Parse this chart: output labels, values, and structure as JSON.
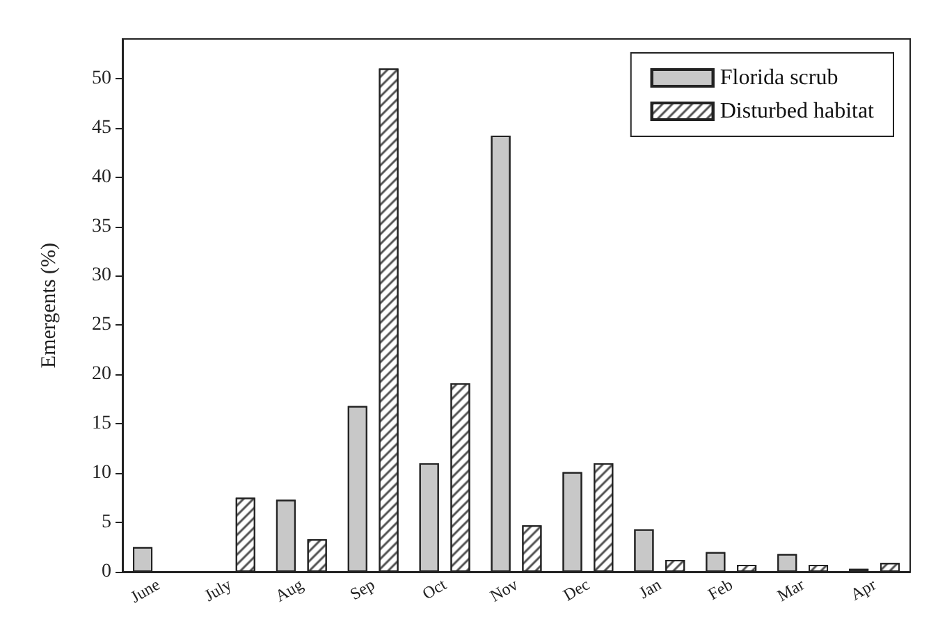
{
  "chart_data": {
    "type": "bar",
    "ylabel": "Emergents (%)",
    "categories": [
      "June",
      "July",
      "Aug",
      "Sep",
      "Oct",
      "Nov",
      "Dec",
      "Jan",
      "Feb",
      "Mar",
      "Apr"
    ],
    "series": [
      {
        "name": "Florida scrub",
        "color": "#c8c8c8",
        "values": [
          2.5,
          null,
          7.3,
          16.8,
          11,
          44.2,
          10.1,
          4.3,
          2.0,
          1.8,
          0.3
        ]
      },
      {
        "name": "Disturbed habitat",
        "color": "#ffffff",
        "values": [
          null,
          7.5,
          3.3,
          51.0,
          19.1,
          4.7,
          11.0,
          1.2,
          0.7,
          0.7,
          0.9
        ]
      }
    ],
    "ylim": [
      0,
      54
    ],
    "yticks": [
      0,
      5,
      10,
      15,
      20,
      25,
      30,
      35,
      40,
      45,
      50
    ],
    "grid": false,
    "legend": "top right"
  }
}
